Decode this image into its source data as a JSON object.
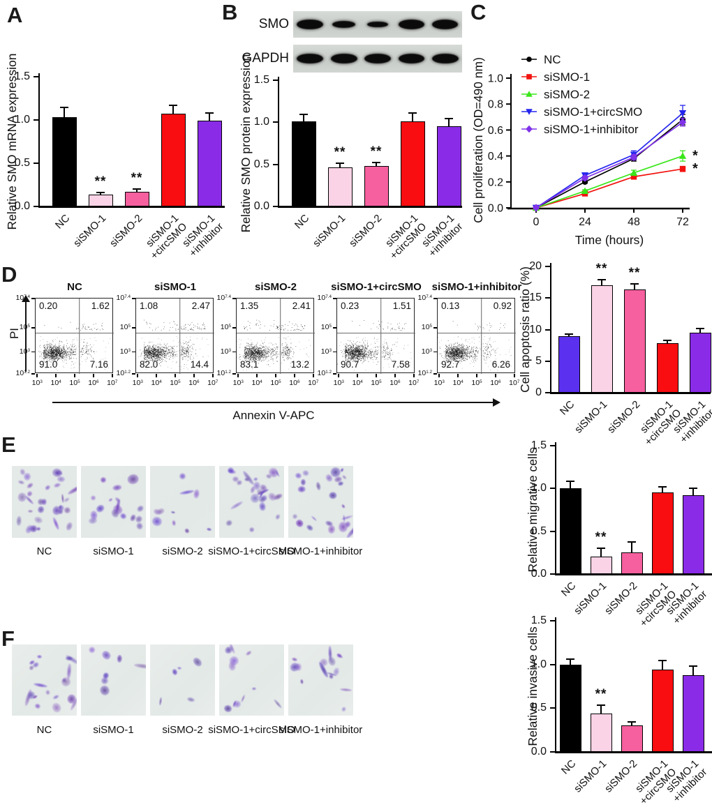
{
  "figure": {
    "panels": {
      "A": "A",
      "B": "B",
      "C": "C",
      "D": "D",
      "E": "E",
      "F": "F"
    }
  },
  "colors": {
    "black": "#000000",
    "light_pink": "#fbd3e6",
    "pink": "#f6609e",
    "red": "#f90d10",
    "purple": "#8a2be8",
    "blue_violet": "#5b30ee",
    "green": "#39e619",
    "blue": "#2525ee"
  },
  "western_blot": {
    "rows": [
      {
        "label": "SMO",
        "band_intensities": [
          1.0,
          0.55,
          0.4,
          0.95,
          0.92
        ]
      },
      {
        "label": "GAPDH",
        "band_intensities": [
          1.0,
          1.0,
          0.95,
          0.95,
          1.0
        ]
      }
    ]
  },
  "flow": {
    "xlabel": "Annexin V-APC",
    "ylabel": "PI",
    "x_exponents": [
      "3",
      "4",
      "5",
      "6",
      "7"
    ],
    "y_exponents": [
      "7.4",
      "5",
      "3",
      "1.2"
    ],
    "plots": [
      {
        "title": "NC",
        "ul": "0.20",
        "ur": "1.62",
        "ll": "91.0",
        "lr": "7.16"
      },
      {
        "title": "siSMO-1",
        "ul": "1.08",
        "ur": "2.47",
        "ll": "82.0",
        "lr": "14.4"
      },
      {
        "title": "siSMO-2",
        "ul": "1.35",
        "ur": "2.41",
        "ll": "83.1",
        "lr": "13.2"
      },
      {
        "title": "siSMO-1+circSMO",
        "ul": "0.23",
        "ur": "1.51",
        "ll": "90.7",
        "lr": "7.58"
      },
      {
        "title": "siSMO-1+inhibitor",
        "ul": "0.13",
        "ur": "0.92",
        "ll": "92.7",
        "lr": "6.26"
      }
    ]
  },
  "microscopy": {
    "migration": {
      "labels": [
        "NC",
        "siSMO-1",
        "siSMO-2",
        "siSMO-1+circSMO",
        "siSMO-1+inhibitor"
      ],
      "approx_cell_counts": [
        32,
        17,
        10,
        26,
        24
      ]
    },
    "invasion": {
      "labels": [
        "NC",
        "siSMO-1",
        "siSMO-2",
        "siSMO-1+circSMO",
        "siSMO-1+inhibitor"
      ],
      "approx_cell_counts": [
        19,
        7,
        5,
        11,
        15
      ]
    }
  },
  "chart_data": [
    {
      "id": "smo_mrna",
      "type": "bar",
      "ylabel": "Relative SMO mRNA expression",
      "categories": [
        "NC",
        "siSMO-1",
        "siSMO-2",
        "siSMO-1\n+circSMO",
        "siSMO-1\n+inhibitor"
      ],
      "values": [
        1.03,
        0.14,
        0.17,
        1.07,
        0.99
      ],
      "errors": [
        0.12,
        0.03,
        0.04,
        0.11,
        0.1
      ],
      "sig": [
        "",
        "**",
        "**",
        "",
        ""
      ],
      "bar_colors": [
        "#000000",
        "#fbd3e6",
        "#f6609e",
        "#f90d10",
        "#8a2be8"
      ],
      "ylim": [
        0,
        1.5
      ],
      "ytick_values": [
        0,
        0.5,
        1,
        1.5
      ],
      "ytick_labels": [
        "0.0",
        "0.5",
        "1.0",
        "1.5"
      ]
    },
    {
      "id": "smo_protein",
      "type": "bar",
      "ylabel": "Relative SMO protein expression",
      "categories": [
        "NC",
        "siSMO-1",
        "siSMO-2",
        "siSMO-1\n+circSMO",
        "siSMO-1\n+inhibitor"
      ],
      "values": [
        1.01,
        0.46,
        0.48,
        1.01,
        0.95
      ],
      "errors": [
        0.09,
        0.06,
        0.05,
        0.11,
        0.1
      ],
      "sig": [
        "",
        "**",
        "**",
        "",
        ""
      ],
      "bar_colors": [
        "#000000",
        "#fbd3e6",
        "#f6609e",
        "#f90d10",
        "#8a2be8"
      ],
      "ylim": [
        0,
        1.5
      ],
      "ytick_values": [
        0,
        0.5,
        1,
        1.5
      ],
      "ytick_labels": [
        "0.0",
        "0.5",
        "1.0",
        "1.5"
      ]
    },
    {
      "id": "proliferation",
      "type": "line",
      "xlabel": "Time (hours)",
      "ylabel": "Cell proliferation (OD=490 nm)",
      "x": [
        0,
        24,
        48,
        72
      ],
      "xtick_labels": [
        "0",
        "24",
        "48",
        "72"
      ],
      "ylim": [
        0,
        1.0
      ],
      "ytick_values": [
        0,
        0.2,
        0.4,
        0.6,
        0.8,
        1.0
      ],
      "ytick_labels": [
        "0.0",
        "0.2",
        "0.4",
        "0.6",
        "0.8",
        "1.0"
      ],
      "legend_position": "upper-left",
      "series": [
        {
          "name": "NC",
          "color": "#000000",
          "marker": "circle",
          "values": [
            0,
            0.2,
            0.38,
            0.68
          ],
          "errors": [
            0,
            0.01,
            0.02,
            0.04
          ],
          "end_sig": ""
        },
        {
          "name": "siSMO-1",
          "color": "#f2130f",
          "marker": "square",
          "values": [
            0,
            0.11,
            0.24,
            0.3
          ],
          "errors": [
            0,
            0.01,
            0.015,
            0.02
          ],
          "end_sig": "*"
        },
        {
          "name": "siSMO-2",
          "color": "#39e619",
          "marker": "triangle-up",
          "values": [
            0,
            0.13,
            0.27,
            0.4
          ],
          "errors": [
            0,
            0.01,
            0.02,
            0.04
          ],
          "end_sig": "*"
        },
        {
          "name": "siSMO-1+circSMO",
          "color": "#2525ee",
          "marker": "triangle-down",
          "values": [
            0,
            0.25,
            0.41,
            0.73
          ],
          "errors": [
            0,
            0.02,
            0.03,
            0.06
          ],
          "end_sig": ""
        },
        {
          "name": "siSMO-1+inhibitor",
          "color": "#8032e8",
          "marker": "diamond",
          "values": [
            0,
            0.23,
            0.39,
            0.66
          ],
          "errors": [
            0,
            0.015,
            0.02,
            0.03
          ],
          "end_sig": ""
        }
      ]
    },
    {
      "id": "apoptosis_ratio",
      "type": "bar",
      "ylabel": "Cell apoptosis ratio (%)",
      "categories": [
        "NC",
        "siSMO-1",
        "siSMO-2",
        "siSMO-1\n+circSMO",
        "siSMO-1\n+inhibitor"
      ],
      "values": [
        8.9,
        17.0,
        16.3,
        7.8,
        9.5
      ],
      "errors": [
        0.5,
        1.0,
        1.1,
        0.6,
        0.8
      ],
      "sig": [
        "",
        "**",
        "**",
        "",
        ""
      ],
      "bar_colors": [
        "#5b30ee",
        "#fbd3e6",
        "#f6609e",
        "#f90d10",
        "#8a2be8"
      ],
      "ylim": [
        0,
        20
      ],
      "ytick_values": [
        0,
        5,
        10,
        15,
        20
      ],
      "ytick_labels": [
        "0",
        "5",
        "10",
        "15",
        "20"
      ]
    },
    {
      "id": "migration",
      "type": "bar",
      "ylabel": "Relative migrative cells",
      "categories": [
        "NC",
        "siSMO-1",
        "siSMO-2",
        "siSMO-1\n+circSMO",
        "siSMO-1\n+inhibitor"
      ],
      "values": [
        1.0,
        0.2,
        0.25,
        0.95,
        0.92
      ],
      "errors": [
        0.09,
        0.11,
        0.13,
        0.08,
        0.09
      ],
      "sig": [
        "",
        "**",
        "",
        "",
        ""
      ],
      "bar_colors": [
        "#000000",
        "#fbd3e6",
        "#f6609e",
        "#f90d10",
        "#8a2be8"
      ],
      "ylim": [
        0,
        1.5
      ],
      "ytick_values": [
        0,
        0.5,
        1,
        1.5
      ],
      "ytick_labels": [
        "0.0",
        "0.5",
        "1.0",
        "1.5"
      ]
    },
    {
      "id": "invasion",
      "type": "bar",
      "ylabel": "Relative invasive cells",
      "categories": [
        "NC",
        "siSMO-1",
        "siSMO-2",
        "siSMO-1\n+circSMO",
        "siSMO-1\n+inhibitor"
      ],
      "values": [
        1.0,
        0.44,
        0.3,
        0.94,
        0.88
      ],
      "errors": [
        0.07,
        0.1,
        0.05,
        0.11,
        0.11
      ],
      "sig": [
        "",
        "**",
        "",
        "",
        ""
      ],
      "bar_colors": [
        "#000000",
        "#fbd3e6",
        "#f6609e",
        "#f90d10",
        "#8a2be8"
      ],
      "ylim": [
        0,
        1.5
      ],
      "ytick_values": [
        0,
        0.5,
        1,
        1.5
      ],
      "ytick_labels": [
        "0.0",
        "0.5",
        "1.0",
        "1.5"
      ]
    }
  ]
}
